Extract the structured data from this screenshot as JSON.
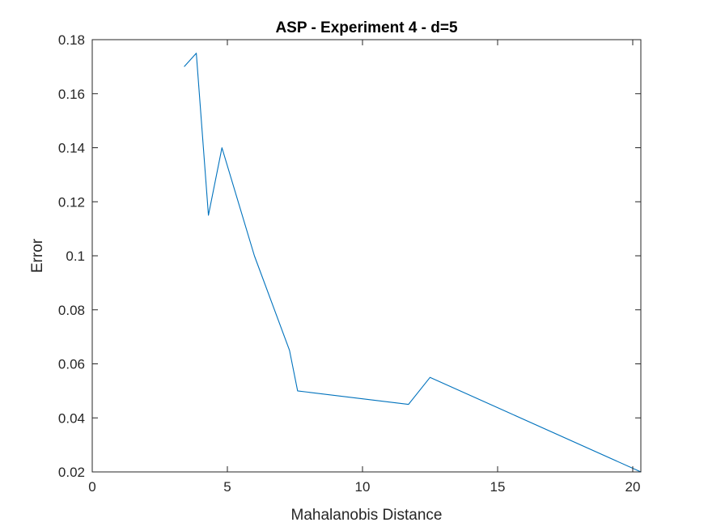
{
  "chart_data": {
    "type": "line",
    "title": "ASP - Experiment 4 - d=5",
    "xlabel": "Mahalanobis Distance",
    "ylabel": "Error",
    "xlim": [
      0,
      20.3
    ],
    "ylim": [
      0.02,
      0.18
    ],
    "xticks": [
      0,
      5,
      10,
      15,
      20
    ],
    "xtick_labels": [
      "0",
      "5",
      "10",
      "15",
      "20"
    ],
    "yticks": [
      0.02,
      0.04,
      0.06,
      0.08,
      0.1,
      0.12,
      0.14,
      0.16,
      0.18
    ],
    "ytick_labels": [
      "0.02",
      "0.04",
      "0.06",
      "0.08",
      "0.1",
      "0.12",
      "0.14",
      "0.16",
      "0.18"
    ],
    "grid": false,
    "series": [
      {
        "color": "#0072BD",
        "x": [
          3.4,
          3.85,
          4.3,
          4.8,
          6.0,
          7.3,
          7.6,
          11.7,
          12.5,
          20.3
        ],
        "y": [
          0.17,
          0.175,
          0.115,
          0.14,
          0.1,
          0.065,
          0.05,
          0.045,
          0.055,
          0.02
        ]
      }
    ]
  }
}
